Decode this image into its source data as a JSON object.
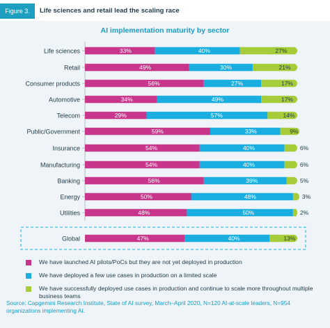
{
  "figure": {
    "label": "Figure 3.",
    "title": "Life sciences and retail lead the scaling race"
  },
  "colors": {
    "pink": "#c8368b",
    "blue": "#1aaee0",
    "green": "#a7cc3a",
    "accent": "#1f9fbf"
  },
  "chart_data": {
    "type": "bar",
    "orientation": "horizontal",
    "stacked": true,
    "title": "AI implementation maturity by sector",
    "categories": [
      "Life sciences",
      "Retail",
      "Consumer products",
      "Automotive",
      "Telecom",
      "Public/Government",
      "Insurance",
      "Manufacturing",
      "Banking",
      "Energy",
      "Utilities",
      "Global"
    ],
    "series": [
      {
        "name": "We have launched AI pilots/PoCs but they are not yet deployed in production",
        "color": "#c8368b",
        "values": [
          33,
          49,
          56,
          34,
          29,
          59,
          54,
          54,
          56,
          50,
          48,
          47
        ]
      },
      {
        "name": "We have deployed a few use cases in production on a limited scale",
        "color": "#1aaee0",
        "values": [
          40,
          30,
          27,
          49,
          57,
          33,
          40,
          40,
          39,
          48,
          50,
          40
        ]
      },
      {
        "name": "We have successfully deployed use cases in production and continue to scale more throughout multiple business teams",
        "color": "#a7cc3a",
        "values": [
          27,
          21,
          17,
          17,
          14,
          9,
          6,
          6,
          5,
          3,
          2,
          13
        ]
      }
    ],
    "unit": "%",
    "xlim": [
      0,
      100
    ],
    "highlighted_category": "Global",
    "legend_position": "bottom"
  },
  "source": "Source: Capgemini Research Institute, State of AI survey, March–April 2020, N=120 AI-at-scale leaders, N=954 organizations implementing AI."
}
